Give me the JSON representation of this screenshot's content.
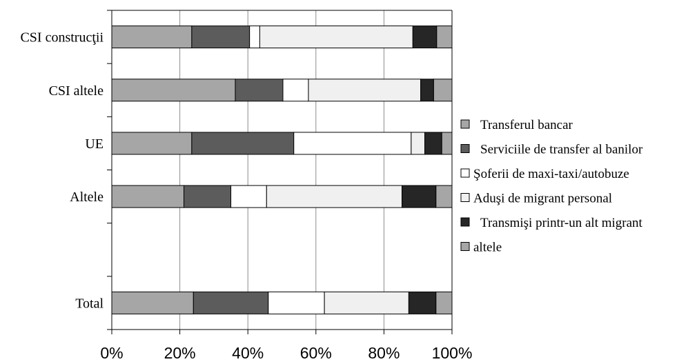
{
  "chart_data": {
    "type": "bar",
    "orientation": "horizontal",
    "stacked": "percent",
    "categories": [
      "CSI construcţii",
      "CSI altele",
      "UE",
      "Altele",
      "",
      "Total"
    ],
    "series": [
      {
        "name": "Transferul bancar",
        "color": "#a6a6a6",
        "values": [
          23.5,
          36.3,
          23.5,
          21.2,
          0,
          24.0
        ]
      },
      {
        "name": "Serviciile de transfer al banilor",
        "color": "#5c5c5c",
        "values": [
          17.0,
          14.0,
          30.0,
          13.8,
          0,
          22.0
        ]
      },
      {
        "name": "Şoferii de maxi-taxi/autobuze",
        "color": "#ffffff",
        "values": [
          3.0,
          7.5,
          34.5,
          10.5,
          0,
          16.5
        ]
      },
      {
        "name": "Aduşi de migrant personal",
        "color": "#f0f0f0",
        "values": [
          45.0,
          33.0,
          4.0,
          39.8,
          0,
          24.8
        ]
      },
      {
        "name": "Transmişi printr-un alt migrant",
        "color": "#262626",
        "values": [
          7.0,
          3.8,
          5.0,
          10.0,
          0,
          8.0
        ]
      },
      {
        "name": "altele",
        "color": "#a6a6a6",
        "values": [
          4.5,
          5.4,
          3.0,
          4.7,
          0,
          4.7
        ]
      }
    ],
    "x_ticks": [
      "0%",
      "20%",
      "40%",
      "60%",
      "80%",
      "100%"
    ],
    "xlim": [
      0,
      100
    ],
    "grid": "vertical",
    "legend_position": "right",
    "title": "",
    "xlabel": "",
    "ylabel": ""
  }
}
